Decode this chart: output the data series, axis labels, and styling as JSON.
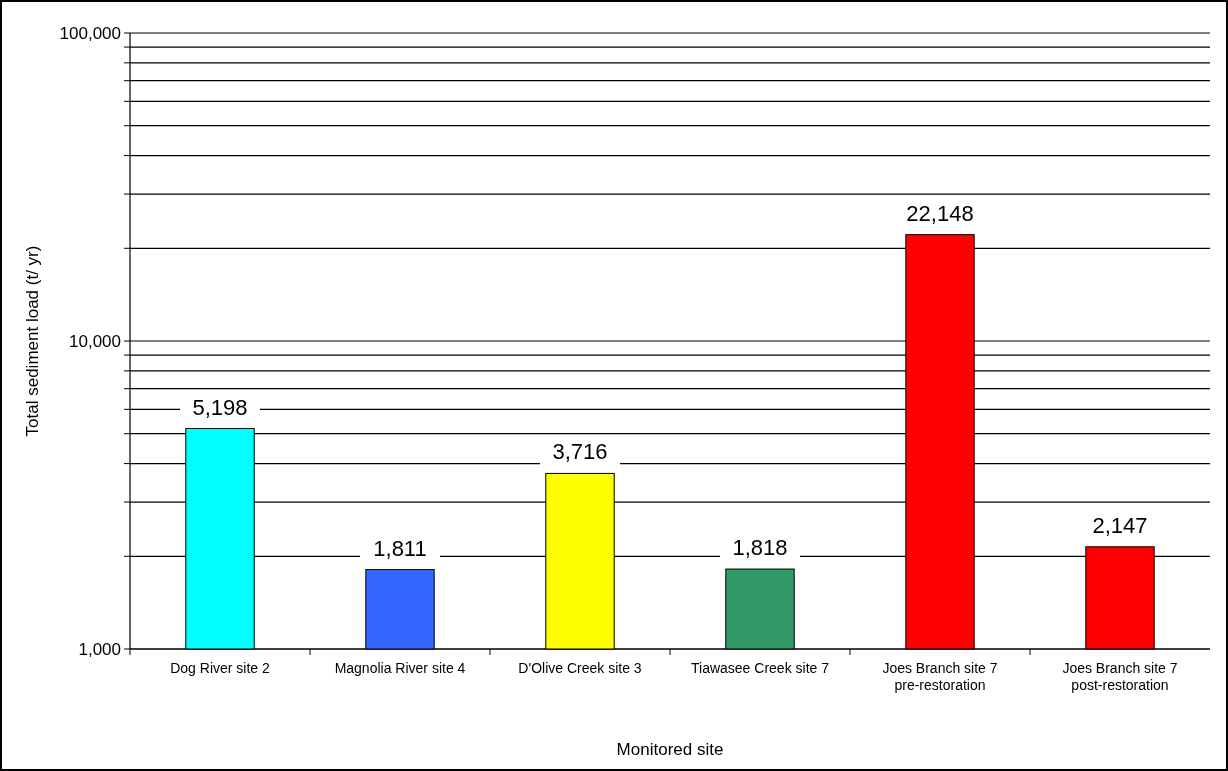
{
  "chart_data": {
    "type": "bar",
    "xlabel": "Monitored site",
    "ylabel": "Total sediment load (t/ yr)",
    "categories": [
      "Dog River site 2",
      "Magnolia River site 4",
      "D'Olive Creek site 3",
      "Tiawasee Creek site 7",
      "Joes Branch site 7 pre-restoration",
      "Joes Branch site 7 post-restoration"
    ],
    "values": [
      5198,
      1811,
      3716,
      1818,
      22148,
      2147
    ],
    "colors": [
      "#00ffff",
      "#3366ff",
      "#ffff00",
      "#339966",
      "#ff0000",
      "#ff0000"
    ],
    "log": "y",
    "ylim": [
      1000,
      100000
    ],
    "yticks": [
      {
        "value": 1000,
        "label": "1,000"
      },
      {
        "value": 2000,
        "label": null
      },
      {
        "value": 3000,
        "label": null
      },
      {
        "value": 4000,
        "label": null
      },
      {
        "value": 5000,
        "label": null
      },
      {
        "value": 6000,
        "label": null
      },
      {
        "value": 7000,
        "label": null
      },
      {
        "value": 8000,
        "label": null
      },
      {
        "value": 9000,
        "label": null
      },
      {
        "value": 10000,
        "label": "10,000"
      },
      {
        "value": 20000,
        "label": null
      },
      {
        "value": 30000,
        "label": null
      },
      {
        "value": 40000,
        "label": null
      },
      {
        "value": 50000,
        "label": null
      },
      {
        "value": 60000,
        "label": null
      },
      {
        "value": 70000,
        "label": null
      },
      {
        "value": 80000,
        "label": null
      },
      {
        "value": 90000,
        "label": null
      },
      {
        "value": 100000,
        "label": "100,000"
      }
    ],
    "grid": "y",
    "value_labels": [
      "5,198",
      "1,811",
      "3,716",
      "1,818",
      "22,148",
      "2,147"
    ]
  }
}
